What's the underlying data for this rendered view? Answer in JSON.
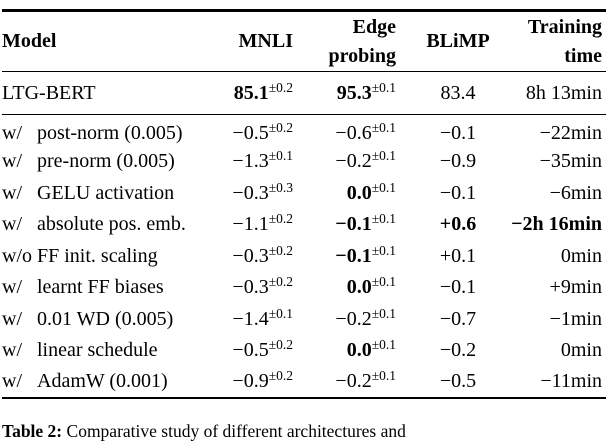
{
  "colors": {
    "text": "#000000",
    "background": "#ffffff",
    "rule": "#000000"
  },
  "table": {
    "columns": [
      "Model",
      "MNLI",
      "Edge probing",
      "BLiMP",
      "Training time"
    ],
    "header": {
      "model": "Model",
      "mnli": "MNLI",
      "edge_line1": "Edge",
      "edge_line2": "probing",
      "blimp": "BLiMP",
      "training_line1": "Training",
      "training_line2": "time"
    },
    "base_row": {
      "prefix": "",
      "name": "LTG-BERT",
      "mnli": {
        "text": "85.1",
        "sup": "±0.2",
        "bold": true
      },
      "edge": {
        "text": "95.3",
        "sup": "±0.1",
        "bold": true
      },
      "blimp": {
        "text": "83.4",
        "bold": false
      },
      "time": {
        "text": "8h 13min",
        "bold": false
      }
    },
    "rows": [
      {
        "prefix": "w/",
        "name": "post-norm (0.005)",
        "mnli": {
          "text": "−0.5",
          "sup": "±0.2",
          "bold": false
        },
        "edge": {
          "text": "−0.6",
          "sup": "±0.1",
          "bold": false
        },
        "blimp": {
          "text": "−0.1",
          "bold": false
        },
        "time": {
          "text": "−22min",
          "bold": false
        }
      },
      {
        "prefix": "w/",
        "name": "pre-norm (0.005)",
        "mnli": {
          "text": "−1.3",
          "sup": "±0.1",
          "bold": false
        },
        "edge": {
          "text": "−0.2",
          "sup": "±0.1",
          "bold": false
        },
        "blimp": {
          "text": "−0.9",
          "bold": false
        },
        "time": {
          "text": "−35min",
          "bold": false
        }
      },
      {
        "prefix": "w/",
        "name": "GELU activation",
        "mnli": {
          "text": "−0.3",
          "sup": "±0.3",
          "bold": false
        },
        "edge": {
          "text": "0.0",
          "sup": "±0.1",
          "bold": true
        },
        "blimp": {
          "text": "−0.1",
          "bold": false
        },
        "time": {
          "text": "−6min",
          "bold": false
        }
      },
      {
        "prefix": "w/",
        "name": "absolute pos. emb.",
        "mnli": {
          "text": "−1.1",
          "sup": "±0.2",
          "bold": false
        },
        "edge": {
          "text": "−0.1",
          "sup": "±0.1",
          "bold": true
        },
        "blimp": {
          "text": "+0.6",
          "bold": true
        },
        "time": {
          "text": "−2h 16min",
          "bold": true
        }
      },
      {
        "prefix": "w/o",
        "name": "FF init. scaling",
        "mnli": {
          "text": "−0.3",
          "sup": "±0.2",
          "bold": false
        },
        "edge": {
          "text": "−0.1",
          "sup": "±0.1",
          "bold": true
        },
        "blimp": {
          "text": "+0.1",
          "bold": false
        },
        "time": {
          "text": "0min",
          "bold": false
        }
      },
      {
        "prefix": "w/",
        "name": "learnt FF biases",
        "mnli": {
          "text": "−0.3",
          "sup": "±0.2",
          "bold": false
        },
        "edge": {
          "text": "0.0",
          "sup": "±0.1",
          "bold": true
        },
        "blimp": {
          "text": "−0.1",
          "bold": false
        },
        "time": {
          "text": "+9min",
          "bold": false
        }
      },
      {
        "prefix": "w/",
        "name": "0.01 WD (0.005)",
        "mnli": {
          "text": "−1.4",
          "sup": "±0.1",
          "bold": false
        },
        "edge": {
          "text": "−0.2",
          "sup": "±0.1",
          "bold": false
        },
        "blimp": {
          "text": "−0.7",
          "bold": false
        },
        "time": {
          "text": "−1min",
          "bold": false
        }
      },
      {
        "prefix": "w/",
        "name": "linear schedule",
        "mnli": {
          "text": "−0.5",
          "sup": "±0.2",
          "bold": false
        },
        "edge": {
          "text": "0.0",
          "sup": "±0.1",
          "bold": true
        },
        "blimp": {
          "text": "−0.2",
          "bold": false
        },
        "time": {
          "text": "0min",
          "bold": false
        }
      },
      {
        "prefix": "w/",
        "name": "AdamW (0.001)",
        "mnli": {
          "text": "−0.9",
          "sup": "±0.2",
          "bold": false
        },
        "edge": {
          "text": "−0.2",
          "sup": "±0.1",
          "bold": false
        },
        "blimp": {
          "text": "−0.5",
          "bold": false
        },
        "time": {
          "text": "−11min",
          "bold": false
        }
      }
    ]
  },
  "caption": {
    "label": "Table 2:",
    "text": "Comparative study of different architectures and"
  }
}
